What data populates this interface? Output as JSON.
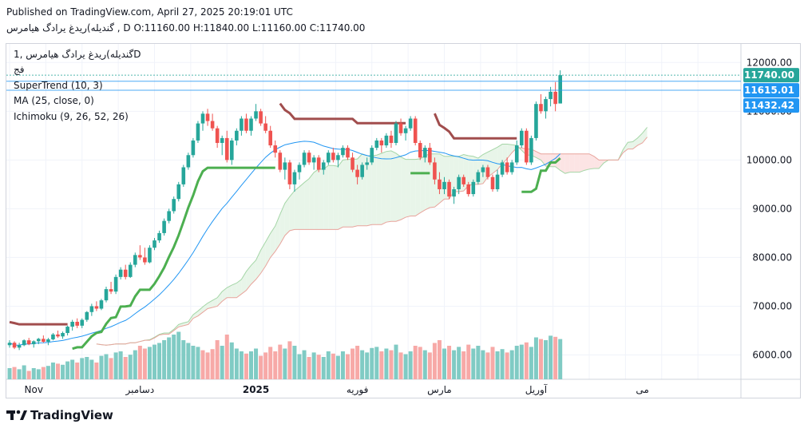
{
  "header": {
    "published": "Published on TradingView.com, April 27, 2025 20:19:01 UTC",
    "ohlc_line": "گندیله)ریدغ یرادگ هیامرس , D O:11160.00 H:11840.00 L:11160.00 C:11740.00"
  },
  "legend": {
    "symbol_line": "گندیله)ریدغ یرادگ هیامرس ,1D",
    "exchange": "فج",
    "supertrend": "SuperTrend (10, 3)",
    "ma": "MA (25, close, 0)",
    "ichimoku": "Ichimoku (9, 26, 52, 26)"
  },
  "brand": {
    "name": "TradingView"
  },
  "colors": {
    "up": "#26a69a",
    "down": "#ef5350",
    "vol_up": "#80cbc4",
    "vol_down": "#f7a9a7",
    "st_up": "#4caf50",
    "st_down": "#a14d4d",
    "ma": "#2196f3",
    "span_a": "#a5d6a7",
    "span_b": "#e8a49c",
    "cloud_bull": "#e8f5e9",
    "cloud_bear": "#fce4e4",
    "price_tag": "#2196f3",
    "last_tag": "#26a69a"
  },
  "chart_data": {
    "type": "candlestick",
    "title": "",
    "ylim": [
      5500,
      12300
    ],
    "y_ticks": [
      6000,
      7000,
      8000,
      9000,
      10000,
      11000,
      12000
    ],
    "y_tick_labels": [
      "6000.00",
      "7000.00",
      "8000.00",
      "9000.00",
      "10000.00",
      "11000.00",
      "12000.00"
    ],
    "x_labels": [
      {
        "label": "Nov",
        "index": 5,
        "bold": false
      },
      {
        "label": "دسامبر",
        "index": 27,
        "bold": false
      },
      {
        "label": "2025",
        "index": 51,
        "bold": true
      },
      {
        "label": "فوریه",
        "index": 72,
        "bold": false
      },
      {
        "label": "مارس",
        "index": 89,
        "bold": false
      },
      {
        "label": "آوریل",
        "index": 109,
        "bold": false
      },
      {
        "label": "می",
        "index": 131,
        "bold": false
      }
    ],
    "price_tags": [
      {
        "value": 11740,
        "label": "11740.00",
        "kind": "last"
      },
      {
        "value": 11615,
        "label": "11615.01",
        "kind": "ref"
      },
      {
        "value": 11432,
        "label": "11432.42",
        "kind": "ref"
      }
    ],
    "ohlc": [
      [
        6200,
        6300,
        6150,
        6250
      ],
      [
        6250,
        6280,
        6120,
        6150
      ],
      [
        6150,
        6250,
        6100,
        6200
      ],
      [
        6200,
        6320,
        6180,
        6300
      ],
      [
        6300,
        6350,
        6200,
        6220
      ],
      [
        6220,
        6300,
        6150,
        6280
      ],
      [
        6280,
        6350,
        6220,
        6330
      ],
      [
        6330,
        6400,
        6250,
        6270
      ],
      [
        6270,
        6350,
        6200,
        6320
      ],
      [
        6320,
        6450,
        6300,
        6420
      ],
      [
        6420,
        6500,
        6350,
        6380
      ],
      [
        6380,
        6480,
        6330,
        6450
      ],
      [
        6450,
        6600,
        6400,
        6580
      ],
      [
        6580,
        6720,
        6500,
        6680
      ],
      [
        6680,
        6750,
        6550,
        6600
      ],
      [
        6600,
        6750,
        6550,
        6720
      ],
      [
        6720,
        6900,
        6680,
        6880
      ],
      [
        6880,
        7050,
        6800,
        7000
      ],
      [
        7000,
        7100,
        6900,
        6950
      ],
      [
        6950,
        7150,
        6920,
        7120
      ],
      [
        7120,
        7400,
        7080,
        7350
      ],
      [
        7350,
        7500,
        7250,
        7300
      ],
      [
        7300,
        7650,
        7250,
        7600
      ],
      [
        7600,
        7800,
        7550,
        7750
      ],
      [
        7750,
        7850,
        7550,
        7600
      ],
      [
        7600,
        7900,
        7580,
        7850
      ],
      [
        7850,
        8100,
        7800,
        8050
      ],
      [
        8050,
        8250,
        7950,
        8000
      ],
      [
        8000,
        8200,
        7850,
        7900
      ],
      [
        7900,
        8250,
        7880,
        8200
      ],
      [
        8200,
        8400,
        8150,
        8350
      ],
      [
        8350,
        8550,
        8300,
        8500
      ],
      [
        8500,
        8800,
        8450,
        8750
      ],
      [
        8750,
        9000,
        8700,
        8950
      ],
      [
        8950,
        9250,
        8900,
        9200
      ],
      [
        9200,
        9550,
        9150,
        9500
      ],
      [
        9500,
        9900,
        9450,
        9850
      ],
      [
        9850,
        10150,
        9800,
        10100
      ],
      [
        10100,
        10450,
        10050,
        10400
      ],
      [
        10400,
        10800,
        10350,
        10750
      ],
      [
        10750,
        11000,
        10600,
        10950
      ],
      [
        10950,
        11050,
        10700,
        10800
      ],
      [
        10800,
        10950,
        10600,
        10650
      ],
      [
        10650,
        10700,
        10250,
        10350
      ],
      [
        10350,
        10500,
        10100,
        10450
      ],
      [
        10450,
        10600,
        9950,
        10000
      ],
      [
        10000,
        10450,
        9900,
        10400
      ],
      [
        10400,
        10650,
        10300,
        10600
      ],
      [
        10600,
        10900,
        10500,
        10850
      ],
      [
        10850,
        10950,
        10550,
        10600
      ],
      [
        10600,
        10900,
        10500,
        10850
      ],
      [
        10850,
        11150,
        10800,
        11000
      ],
      [
        11000,
        11050,
        10700,
        10750
      ],
      [
        10750,
        10900,
        10550,
        10600
      ],
      [
        10600,
        10700,
        10250,
        10300
      ],
      [
        10300,
        10400,
        10050,
        10150
      ],
      [
        10150,
        10200,
        9750,
        9800
      ],
      [
        9800,
        10050,
        9600,
        9950
      ],
      [
        9950,
        10000,
        9400,
        9500
      ],
      [
        9500,
        9800,
        9350,
        9750
      ],
      [
        9750,
        9950,
        9600,
        9900
      ],
      [
        9900,
        10200,
        9850,
        10150
      ],
      [
        10150,
        10200,
        9900,
        9950
      ],
      [
        9950,
        10100,
        9800,
        10050
      ],
      [
        10050,
        10100,
        9750,
        9800
      ],
      [
        9800,
        10000,
        9700,
        9950
      ],
      [
        9950,
        10200,
        9900,
        10150
      ],
      [
        10150,
        10250,
        9950,
        10000
      ],
      [
        10000,
        10150,
        9850,
        10100
      ],
      [
        10100,
        10300,
        10050,
        10250
      ],
      [
        10250,
        10300,
        10000,
        10050
      ],
      [
        10050,
        10150,
        9750,
        9800
      ],
      [
        9800,
        9900,
        9500,
        9650
      ],
      [
        9650,
        9950,
        9600,
        9900
      ],
      [
        9900,
        10050,
        9800,
        9950
      ],
      [
        9950,
        10300,
        9900,
        10250
      ],
      [
        10250,
        10450,
        10200,
        10400
      ],
      [
        10400,
        10450,
        10150,
        10300
      ],
      [
        10300,
        10550,
        10250,
        10500
      ],
      [
        10500,
        10600,
        10250,
        10350
      ],
      [
        10350,
        10800,
        10300,
        10750
      ],
      [
        10750,
        10850,
        10500,
        10550
      ],
      [
        10550,
        10700,
        10400,
        10650
      ],
      [
        10650,
        10900,
        10600,
        10850
      ],
      [
        10850,
        10900,
        10300,
        10350
      ],
      [
        10350,
        10400,
        10000,
        10050
      ],
      [
        10050,
        10300,
        9950,
        10250
      ],
      [
        10250,
        10350,
        9900,
        9950
      ],
      [
        9950,
        10050,
        9500,
        9600
      ],
      [
        9600,
        9750,
        9300,
        9400
      ],
      [
        9400,
        9650,
        9300,
        9550
      ],
      [
        9550,
        9600,
        9200,
        9250
      ],
      [
        9250,
        9450,
        9100,
        9400
      ],
      [
        9400,
        9700,
        9300,
        9650
      ],
      [
        9650,
        9700,
        9450,
        9500
      ],
      [
        9500,
        9550,
        9250,
        9300
      ],
      [
        9300,
        9600,
        9250,
        9550
      ],
      [
        9550,
        9800,
        9500,
        9750
      ],
      [
        9750,
        9900,
        9650,
        9850
      ],
      [
        9850,
        9900,
        9600,
        9650
      ],
      [
        9650,
        9700,
        9350,
        9400
      ],
      [
        9400,
        9800,
        9350,
        9700
      ],
      [
        9700,
        10000,
        9650,
        9950
      ],
      [
        9950,
        10050,
        9700,
        9750
      ],
      [
        9750,
        10000,
        9700,
        9950
      ],
      [
        9950,
        10400,
        9900,
        10300
      ],
      [
        10300,
        10650,
        10250,
        10600
      ],
      [
        10600,
        10650,
        9900,
        9950
      ],
      [
        9950,
        10500,
        9900,
        10450
      ],
      [
        10450,
        11200,
        10400,
        11150
      ],
      [
        11150,
        11350,
        10950,
        11000
      ],
      [
        11000,
        11300,
        10850,
        11250
      ],
      [
        11250,
        11500,
        11100,
        11400
      ],
      [
        11400,
        11600,
        11000,
        11150
      ],
      [
        11160,
        11840,
        11160,
        11740
      ]
    ],
    "volume_scale": [
      0,
      100
    ],
    "volume": [
      [
        20,
        1
      ],
      [
        22,
        0
      ],
      [
        18,
        1
      ],
      [
        25,
        1
      ],
      [
        15,
        0
      ],
      [
        20,
        1
      ],
      [
        18,
        1
      ],
      [
        22,
        0
      ],
      [
        24,
        1
      ],
      [
        30,
        1
      ],
      [
        28,
        0
      ],
      [
        26,
        1
      ],
      [
        32,
        1
      ],
      [
        35,
        1
      ],
      [
        30,
        0
      ],
      [
        38,
        1
      ],
      [
        40,
        1
      ],
      [
        35,
        1
      ],
      [
        30,
        0
      ],
      [
        42,
        1
      ],
      [
        45,
        1
      ],
      [
        38,
        0
      ],
      [
        48,
        1
      ],
      [
        50,
        1
      ],
      [
        40,
        0
      ],
      [
        44,
        1
      ],
      [
        52,
        1
      ],
      [
        60,
        0
      ],
      [
        55,
        0
      ],
      [
        58,
        1
      ],
      [
        62,
        1
      ],
      [
        65,
        1
      ],
      [
        70,
        1
      ],
      [
        75,
        1
      ],
      [
        80,
        1
      ],
      [
        85,
        1
      ],
      [
        70,
        1
      ],
      [
        65,
        1
      ],
      [
        60,
        1
      ],
      [
        58,
        1
      ],
      [
        52,
        0
      ],
      [
        48,
        0
      ],
      [
        54,
        0
      ],
      [
        70,
        0
      ],
      [
        60,
        1
      ],
      [
        80,
        0
      ],
      [
        66,
        1
      ],
      [
        55,
        1
      ],
      [
        50,
        1
      ],
      [
        46,
        0
      ],
      [
        50,
        1
      ],
      [
        55,
        1
      ],
      [
        42,
        0
      ],
      [
        48,
        0
      ],
      [
        58,
        0
      ],
      [
        50,
        0
      ],
      [
        62,
        0
      ],
      [
        55,
        1
      ],
      [
        68,
        0
      ],
      [
        60,
        1
      ],
      [
        45,
        1
      ],
      [
        52,
        1
      ],
      [
        40,
        0
      ],
      [
        48,
        1
      ],
      [
        44,
        0
      ],
      [
        40,
        1
      ],
      [
        50,
        1
      ],
      [
        46,
        0
      ],
      [
        42,
        1
      ],
      [
        50,
        1
      ],
      [
        45,
        0
      ],
      [
        55,
        0
      ],
      [
        60,
        0
      ],
      [
        52,
        1
      ],
      [
        48,
        1
      ],
      [
        56,
        1
      ],
      [
        58,
        1
      ],
      [
        50,
        0
      ],
      [
        55,
        1
      ],
      [
        52,
        0
      ],
      [
        62,
        1
      ],
      [
        48,
        0
      ],
      [
        45,
        1
      ],
      [
        50,
        1
      ],
      [
        60,
        0
      ],
      [
        58,
        0
      ],
      [
        52,
        1
      ],
      [
        48,
        0
      ],
      [
        65,
        0
      ],
      [
        70,
        0
      ],
      [
        55,
        1
      ],
      [
        60,
        0
      ],
      [
        52,
        1
      ],
      [
        58,
        1
      ],
      [
        50,
        0
      ],
      [
        62,
        0
      ],
      [
        55,
        1
      ],
      [
        60,
        1
      ],
      [
        52,
        1
      ],
      [
        48,
        0
      ],
      [
        58,
        0
      ],
      [
        50,
        1
      ],
      [
        54,
        1
      ],
      [
        48,
        0
      ],
      [
        52,
        1
      ],
      [
        60,
        1
      ],
      [
        62,
        1
      ],
      [
        66,
        0
      ],
      [
        58,
        1
      ],
      [
        75,
        1
      ],
      [
        72,
        0
      ],
      [
        70,
        1
      ],
      [
        78,
        1
      ],
      [
        76,
        0
      ],
      [
        72,
        1
      ]
    ]
  }
}
